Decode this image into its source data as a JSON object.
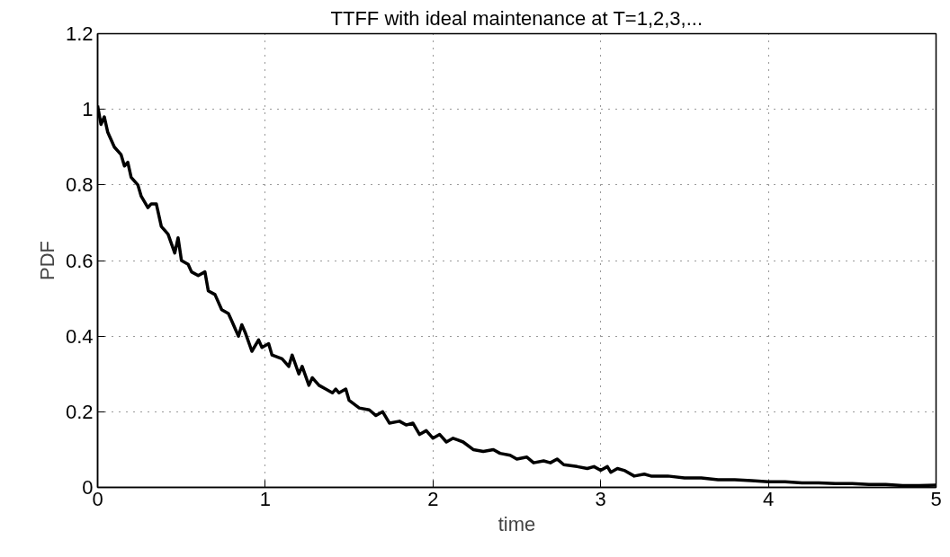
{
  "chart_data": {
    "type": "line",
    "title": "TTFF with ideal maintenance at T=1,2,3,...",
    "xlabel": "time",
    "ylabel": "PDF",
    "x": [
      0,
      0.02,
      0.04,
      0.06,
      0.1,
      0.14,
      0.16,
      0.18,
      0.2,
      0.24,
      0.26,
      0.3,
      0.32,
      0.35,
      0.38,
      0.42,
      0.46,
      0.48,
      0.5,
      0.54,
      0.56,
      0.6,
      0.64,
      0.66,
      0.7,
      0.74,
      0.78,
      0.8,
      0.84,
      0.86,
      0.88,
      0.92,
      0.96,
      0.98,
      1.02,
      1.04,
      1.1,
      1.14,
      1.16,
      1.2,
      1.22,
      1.26,
      1.28,
      1.32,
      1.36,
      1.4,
      1.42,
      1.44,
      1.48,
      1.5,
      1.56,
      1.62,
      1.66,
      1.7,
      1.74,
      1.8,
      1.84,
      1.88,
      1.92,
      1.96,
      2.0,
      2.04,
      2.08,
      2.12,
      2.18,
      2.24,
      2.3,
      2.36,
      2.4,
      2.46,
      2.5,
      2.56,
      2.6,
      2.66,
      2.7,
      2.74,
      2.78,
      2.86,
      2.92,
      2.96,
      3.0,
      3.04,
      3.06,
      3.1,
      3.14,
      3.2,
      3.26,
      3.3,
      3.4,
      3.5,
      3.6,
      3.7,
      3.8,
      3.9,
      4.0,
      4.1,
      4.2,
      4.3,
      4.4,
      4.5,
      4.6,
      4.7,
      4.8,
      4.9,
      5.0
    ],
    "series": [
      {
        "color": "#000000",
        "values": [
          1.01,
          0.96,
          0.98,
          0.94,
          0.9,
          0.88,
          0.85,
          0.86,
          0.82,
          0.8,
          0.77,
          0.74,
          0.75,
          0.75,
          0.69,
          0.67,
          0.62,
          0.66,
          0.6,
          0.59,
          0.57,
          0.56,
          0.57,
          0.52,
          0.51,
          0.47,
          0.46,
          0.44,
          0.4,
          0.43,
          0.41,
          0.36,
          0.39,
          0.37,
          0.38,
          0.35,
          0.34,
          0.32,
          0.35,
          0.3,
          0.32,
          0.27,
          0.29,
          0.27,
          0.26,
          0.25,
          0.26,
          0.25,
          0.26,
          0.23,
          0.21,
          0.205,
          0.19,
          0.2,
          0.17,
          0.175,
          0.165,
          0.17,
          0.14,
          0.15,
          0.13,
          0.14,
          0.12,
          0.13,
          0.12,
          0.1,
          0.095,
          0.1,
          0.09,
          0.085,
          0.075,
          0.08,
          0.065,
          0.07,
          0.065,
          0.075,
          0.06,
          0.055,
          0.05,
          0.055,
          0.045,
          0.055,
          0.04,
          0.05,
          0.045,
          0.03,
          0.035,
          0.03,
          0.03,
          0.025,
          0.025,
          0.02,
          0.02,
          0.018,
          0.015,
          0.015,
          0.012,
          0.012,
          0.01,
          0.01,
          0.008,
          0.008,
          0.005,
          0.005,
          0.006
        ]
      }
    ],
    "xlim": [
      0,
      5
    ],
    "ylim": [
      0,
      1.2
    ],
    "xticks": [
      0,
      1,
      2,
      3,
      4,
      5
    ],
    "yticks": [
      0,
      0.2,
      0.4,
      0.6,
      0.8,
      1,
      1.2
    ],
    "grid": true,
    "line_style": "solid",
    "marker": "none"
  }
}
